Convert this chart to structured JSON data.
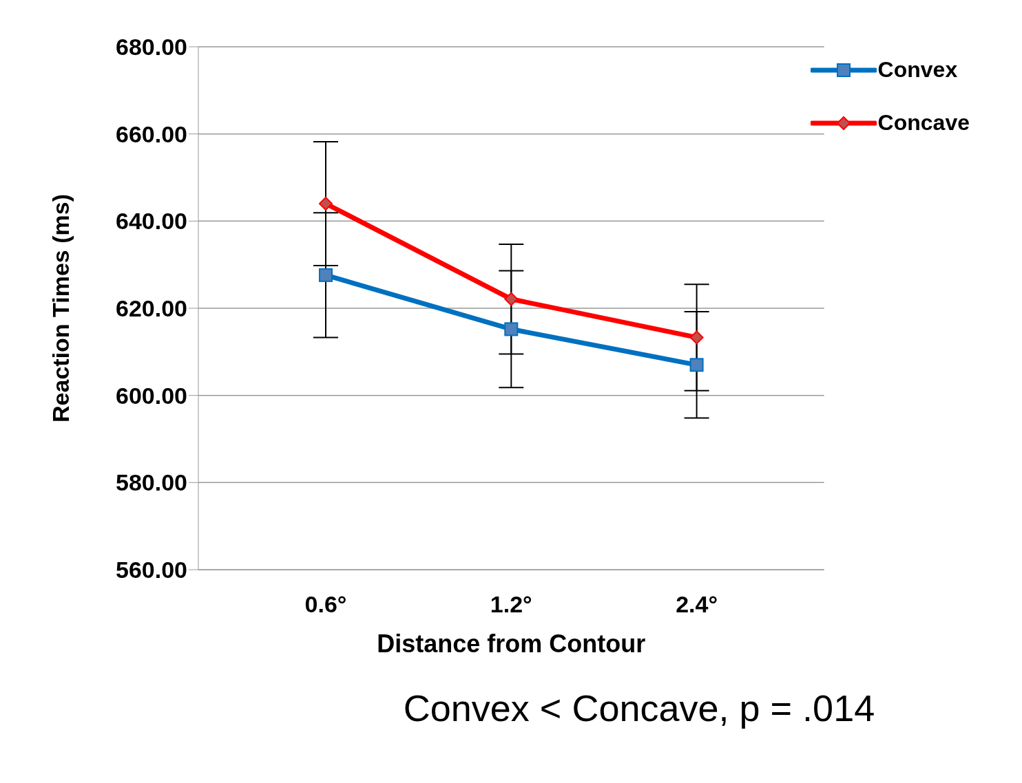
{
  "chart_data": {
    "type": "line",
    "xlabel": "Distance from Contour",
    "ylabel": "Reaction Times (ms)",
    "categories": [
      "0.6°",
      "1.2°",
      "2.4°"
    ],
    "series": [
      {
        "name": "Convex",
        "color": "#0070c0",
        "marker": "square",
        "values": [
          627.6,
          615.2,
          607.0
        ],
        "errors": [
          14.3,
          13.4,
          12.2
        ]
      },
      {
        "name": "Concave",
        "color": "#ff0000",
        "marker": "diamond",
        "values": [
          644.0,
          622.1,
          613.3
        ],
        "errors": [
          14.2,
          12.6,
          12.2
        ]
      }
    ],
    "ylim": [
      560,
      680
    ],
    "yticks": [
      {
        "value": 560,
        "label": "560.00"
      },
      {
        "value": 580,
        "label": "580.00"
      },
      {
        "value": 600,
        "label": "600.00"
      },
      {
        "value": 620,
        "label": "620.00"
      },
      {
        "value": 640,
        "label": "640.00"
      },
      {
        "value": 660,
        "label": "660.00"
      },
      {
        "value": 680,
        "label": "680.00"
      }
    ],
    "grid": "y",
    "legend": "top right",
    "annotations": [
      "Convex < Concave, p = .014"
    ]
  }
}
